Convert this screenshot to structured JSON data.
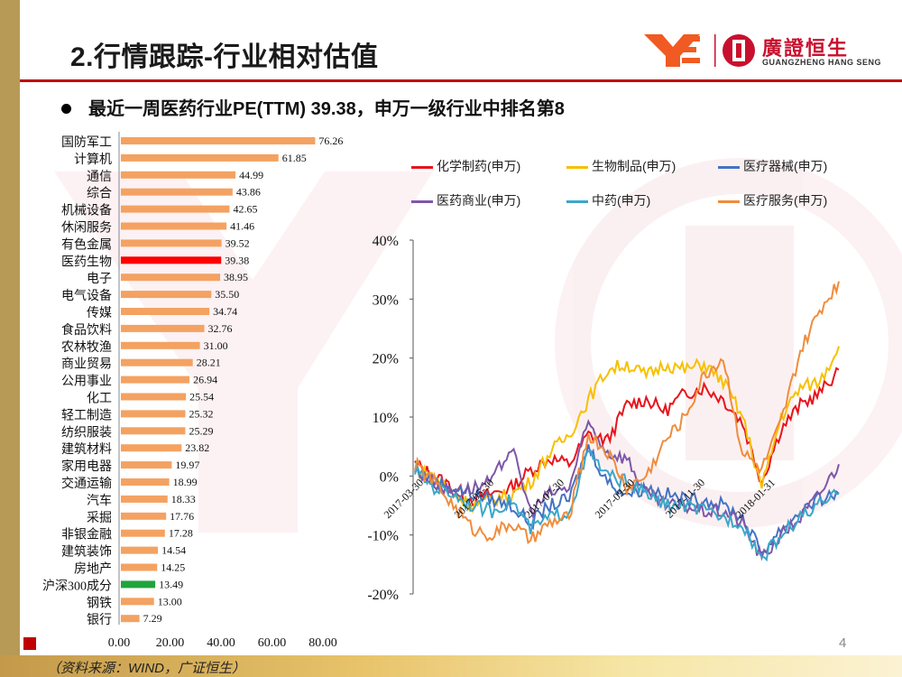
{
  "header": {
    "title": "2.行情跟踪-行业相对估值",
    "logo_cn": "廣證恒生",
    "logo_en": "GUANGZHENG HANG SENG"
  },
  "subtitle": "最近一周医药行业PE(TTM) 39.38，申万一级行业中排名第8",
  "footer": {
    "source": "（资料来源：WIND，广证恒生）",
    "page_number": "4"
  },
  "colors": {
    "accent_red": "#c00000",
    "bar_default": "#f4a261",
    "bar_highlight": "#ff0000",
    "bar_benchmark": "#1fa53c",
    "gold": "#b79a55"
  },
  "chart_data": [
    {
      "type": "bar",
      "orientation": "horizontal",
      "title": "",
      "categories": [
        "国防军工",
        "计算机",
        "通信",
        "综合",
        "机械设备",
        "休闲服务",
        "有色金属",
        "医药生物",
        "电子",
        "电气设备",
        "传媒",
        "食品饮料",
        "农林牧渔",
        "商业贸易",
        "公用事业",
        "化工",
        "轻工制造",
        "纺织服装",
        "建筑材料",
        "家用电器",
        "交通运输",
        "汽车",
        "采掘",
        "非银金融",
        "建筑装饰",
        "房地产",
        "沪深300成分",
        "钢铁",
        "银行"
      ],
      "values": [
        76.26,
        61.85,
        44.99,
        43.86,
        42.65,
        41.46,
        39.52,
        39.38,
        38.95,
        35.5,
        34.74,
        32.76,
        31.0,
        28.21,
        26.94,
        25.54,
        25.32,
        25.29,
        23.82,
        19.97,
        18.99,
        18.33,
        17.76,
        17.28,
        14.54,
        14.25,
        13.49,
        13.0,
        7.29
      ],
      "value_labels": [
        "76.26",
        "61.85",
        "44.99",
        "43.86",
        "42.65",
        "41.46",
        "39.52",
        "39.38",
        "38.95",
        "35.50",
        "34.74",
        "32.76",
        "31.00",
        "28.21",
        "26.94",
        "25.54",
        "25.32",
        "25.29",
        "23.82",
        "19.97",
        "18.99",
        "18.33",
        "17.76",
        "17.28",
        "14.54",
        "14.25",
        "13.49",
        "13.00",
        "7.29"
      ],
      "highlight": {
        "医药生物": "red",
        "沪深300成分": "green"
      },
      "xlim": [
        0,
        80
      ],
      "xticks": [
        "0.00",
        "20.00",
        "40.00",
        "60.00",
        "80.00"
      ]
    },
    {
      "type": "line",
      "title": "",
      "ylim": [
        -20,
        40
      ],
      "yticks": [
        "40%",
        "30%",
        "20%",
        "10%",
        "0%",
        "-10%",
        "-20%"
      ],
      "x_tick_labels": [
        "2017-03-30",
        "2017-05-30",
        "2017-07-30",
        "2017-09-30",
        "2017-11-30",
        "2018-01-31"
      ],
      "legend": [
        "化学制药(申万)",
        "生物制品(申万)",
        "医疗器械(申万)",
        "医药商业(申万)",
        "中药(申万)",
        "医疗服务(申万)"
      ],
      "series": [
        {
          "name": "化学制药(申万)",
          "color": "#e8141c",
          "values": [
            2,
            0,
            -2,
            -4,
            -3,
            -2,
            1,
            3,
            2,
            7,
            6,
            12,
            13,
            11,
            14,
            15,
            13,
            9,
            -1,
            8,
            12,
            14,
            18
          ]
        },
        {
          "name": "生物制品(申万)",
          "color": "#f7c000",
          "values": [
            1,
            0,
            -3,
            -5,
            -4,
            -3,
            -1,
            4,
            7,
            13,
            18,
            19,
            17,
            19,
            18,
            19,
            16,
            10,
            -2,
            10,
            15,
            16,
            22
          ]
        },
        {
          "name": "医疗器械(申万)",
          "color": "#4472c4",
          "values": [
            1,
            -1,
            -2,
            -3,
            -4,
            -5,
            -8,
            -5,
            -4,
            5,
            -1,
            -3,
            -2,
            -3,
            -4,
            -4,
            -5,
            -7,
            -13,
            -9,
            -6,
            -4,
            -3
          ]
        },
        {
          "name": "医药商业(申万)",
          "color": "#7e57a8",
          "values": [
            1,
            -1,
            -3,
            -2,
            -1,
            5,
            -6,
            -3,
            -2,
            9,
            4,
            3,
            -3,
            -5,
            -5,
            -6,
            -6,
            -8,
            -14,
            -10,
            -7,
            -3,
            2
          ]
        },
        {
          "name": "中药(申万)",
          "color": "#3aa7c9",
          "values": [
            1,
            -2,
            -3,
            -5,
            -6,
            -4,
            -9,
            -7,
            -6,
            4,
            0,
            -1,
            -3,
            -5,
            -5,
            -6,
            -7,
            -8,
            -14,
            -10,
            -7,
            -5,
            -3
          ]
        },
        {
          "name": "医疗服务(申万)",
          "color": "#f08c3c",
          "values": [
            2,
            -1,
            -5,
            -9,
            -10,
            -8,
            -11,
            -8,
            -7,
            7,
            4,
            -2,
            0,
            6,
            10,
            17,
            20,
            4,
            1,
            9,
            21,
            28,
            33
          ]
        }
      ]
    }
  ]
}
